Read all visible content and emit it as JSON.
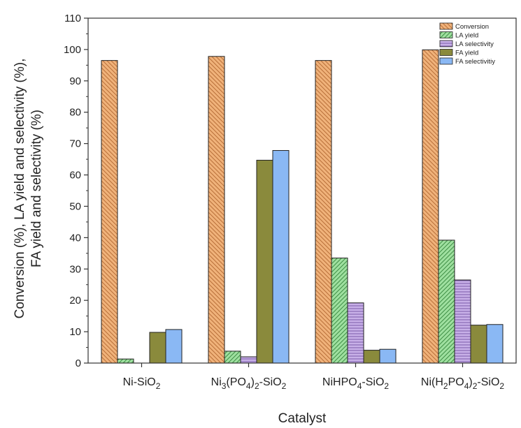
{
  "chart_data": {
    "type": "bar",
    "categories": [
      {
        "base": "Ni-SiO",
        "sub": "2",
        "tail": ""
      },
      {
        "base": "Ni",
        "sub": "3",
        "mid": "(PO",
        "sub2": "4",
        "mid2": ")",
        "sub3": "2",
        "tail": "-SiO",
        "sub4": "2"
      },
      {
        "base": "NiHPO",
        "sub": "4",
        "tail": "-SiO",
        "sub4": "2"
      },
      {
        "base": "Ni(H",
        "sub": "2",
        "mid": "PO",
        "sub2": "4",
        "mid2": ")",
        "sub3": "2",
        "tail": "-SiO",
        "sub4": "2"
      }
    ],
    "category_text": [
      "Ni-SiO2",
      "Ni3(PO4)2-SiO2",
      "NiHPO4-SiO2",
      "Ni(H2PO4)2-SiO2"
    ],
    "series": [
      {
        "name": "Conversion",
        "values": [
          96.5,
          97.8,
          96.5,
          99.9
        ],
        "color": "#f0b27a",
        "pattern": "diag-down"
      },
      {
        "name": "LA yield",
        "values": [
          1.3,
          3.8,
          33.5,
          39.2
        ],
        "color": "#9fe0a0",
        "pattern": "diag-up"
      },
      {
        "name": "LA selectivity",
        "values": [
          0.0,
          2.0,
          19.2,
          26.5
        ],
        "color": "#c8b0e8",
        "pattern": "horizontal"
      },
      {
        "name": "FA yield",
        "values": [
          9.8,
          64.7,
          4.1,
          12.1
        ],
        "color": "#8a8a3c",
        "pattern": "solid"
      },
      {
        "name": "FA selectivitiy",
        "values": [
          10.7,
          67.8,
          4.4,
          12.3
        ],
        "color": "#8ab8f4",
        "pattern": "solid"
      }
    ],
    "xlabel": "Catalyst",
    "ylabel_line1": "Conversion (%), LA yield and selectivity (%),",
    "ylabel_line2": "FA yield and selectivity (%)",
    "ylim": [
      0,
      110
    ],
    "yticks": [
      0,
      10,
      20,
      30,
      40,
      50,
      60,
      70,
      80,
      90,
      100,
      110
    ],
    "grid": false,
    "legend_position": "top-right"
  }
}
